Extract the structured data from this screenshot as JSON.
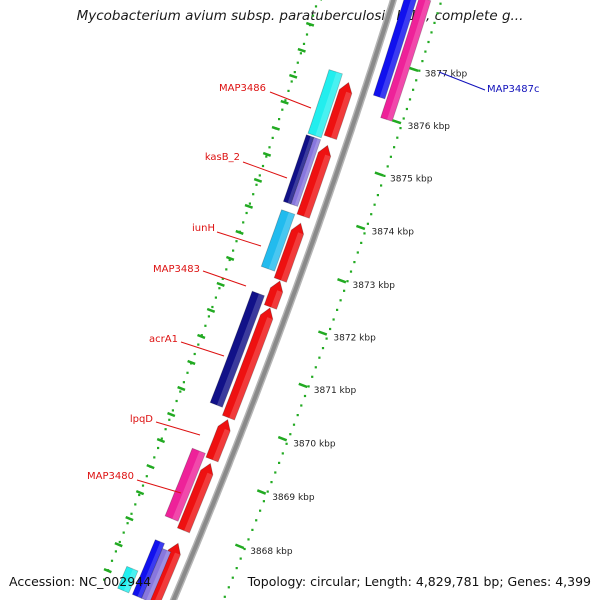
{
  "title": "Mycobacterium avium subsp. paratuberculosis K-10, complete g...",
  "footer": {
    "accession": "Accession: NC_002944",
    "summary": "Topology: circular; Length: 4,829,781 bp; Genes: 4,399"
  },
  "colors": {
    "red": "#ee1111",
    "cyan": "#22eeee",
    "skyblue": "#22bbee",
    "navy": "#111188",
    "magenta": "#ee2299",
    "blue": "#1111ee",
    "lavender": "#8877dd",
    "backbone": "#8a8a8a",
    "dots": "#22aa22",
    "label_red": "#dd1111",
    "label_blue": "#1111bb"
  },
  "scale_ticks": [
    {
      "label": "3877 kbp"
    },
    {
      "label": "3876 kbp"
    },
    {
      "label": "3875 kbp"
    },
    {
      "label": "3874 kbp"
    },
    {
      "label": "3873 kbp"
    },
    {
      "label": "3872 kbp"
    },
    {
      "label": "3871 kbp"
    },
    {
      "label": "3870 kbp"
    },
    {
      "label": "3869 kbp"
    },
    {
      "label": "3868 kbp"
    }
  ],
  "gene_labels": [
    {
      "text": "MAP3486",
      "color": "label_red"
    },
    {
      "text": "kasB_2",
      "color": "label_red"
    },
    {
      "text": "iunH",
      "color": "label_red"
    },
    {
      "text": "MAP3483",
      "color": "label_red"
    },
    {
      "text": "acrA1",
      "color": "label_red"
    },
    {
      "text": "lpqD",
      "color": "label_red"
    },
    {
      "text": "MAP3480",
      "color": "label_red"
    },
    {
      "text": "MAP3487c",
      "color": "label_blue"
    }
  ]
}
